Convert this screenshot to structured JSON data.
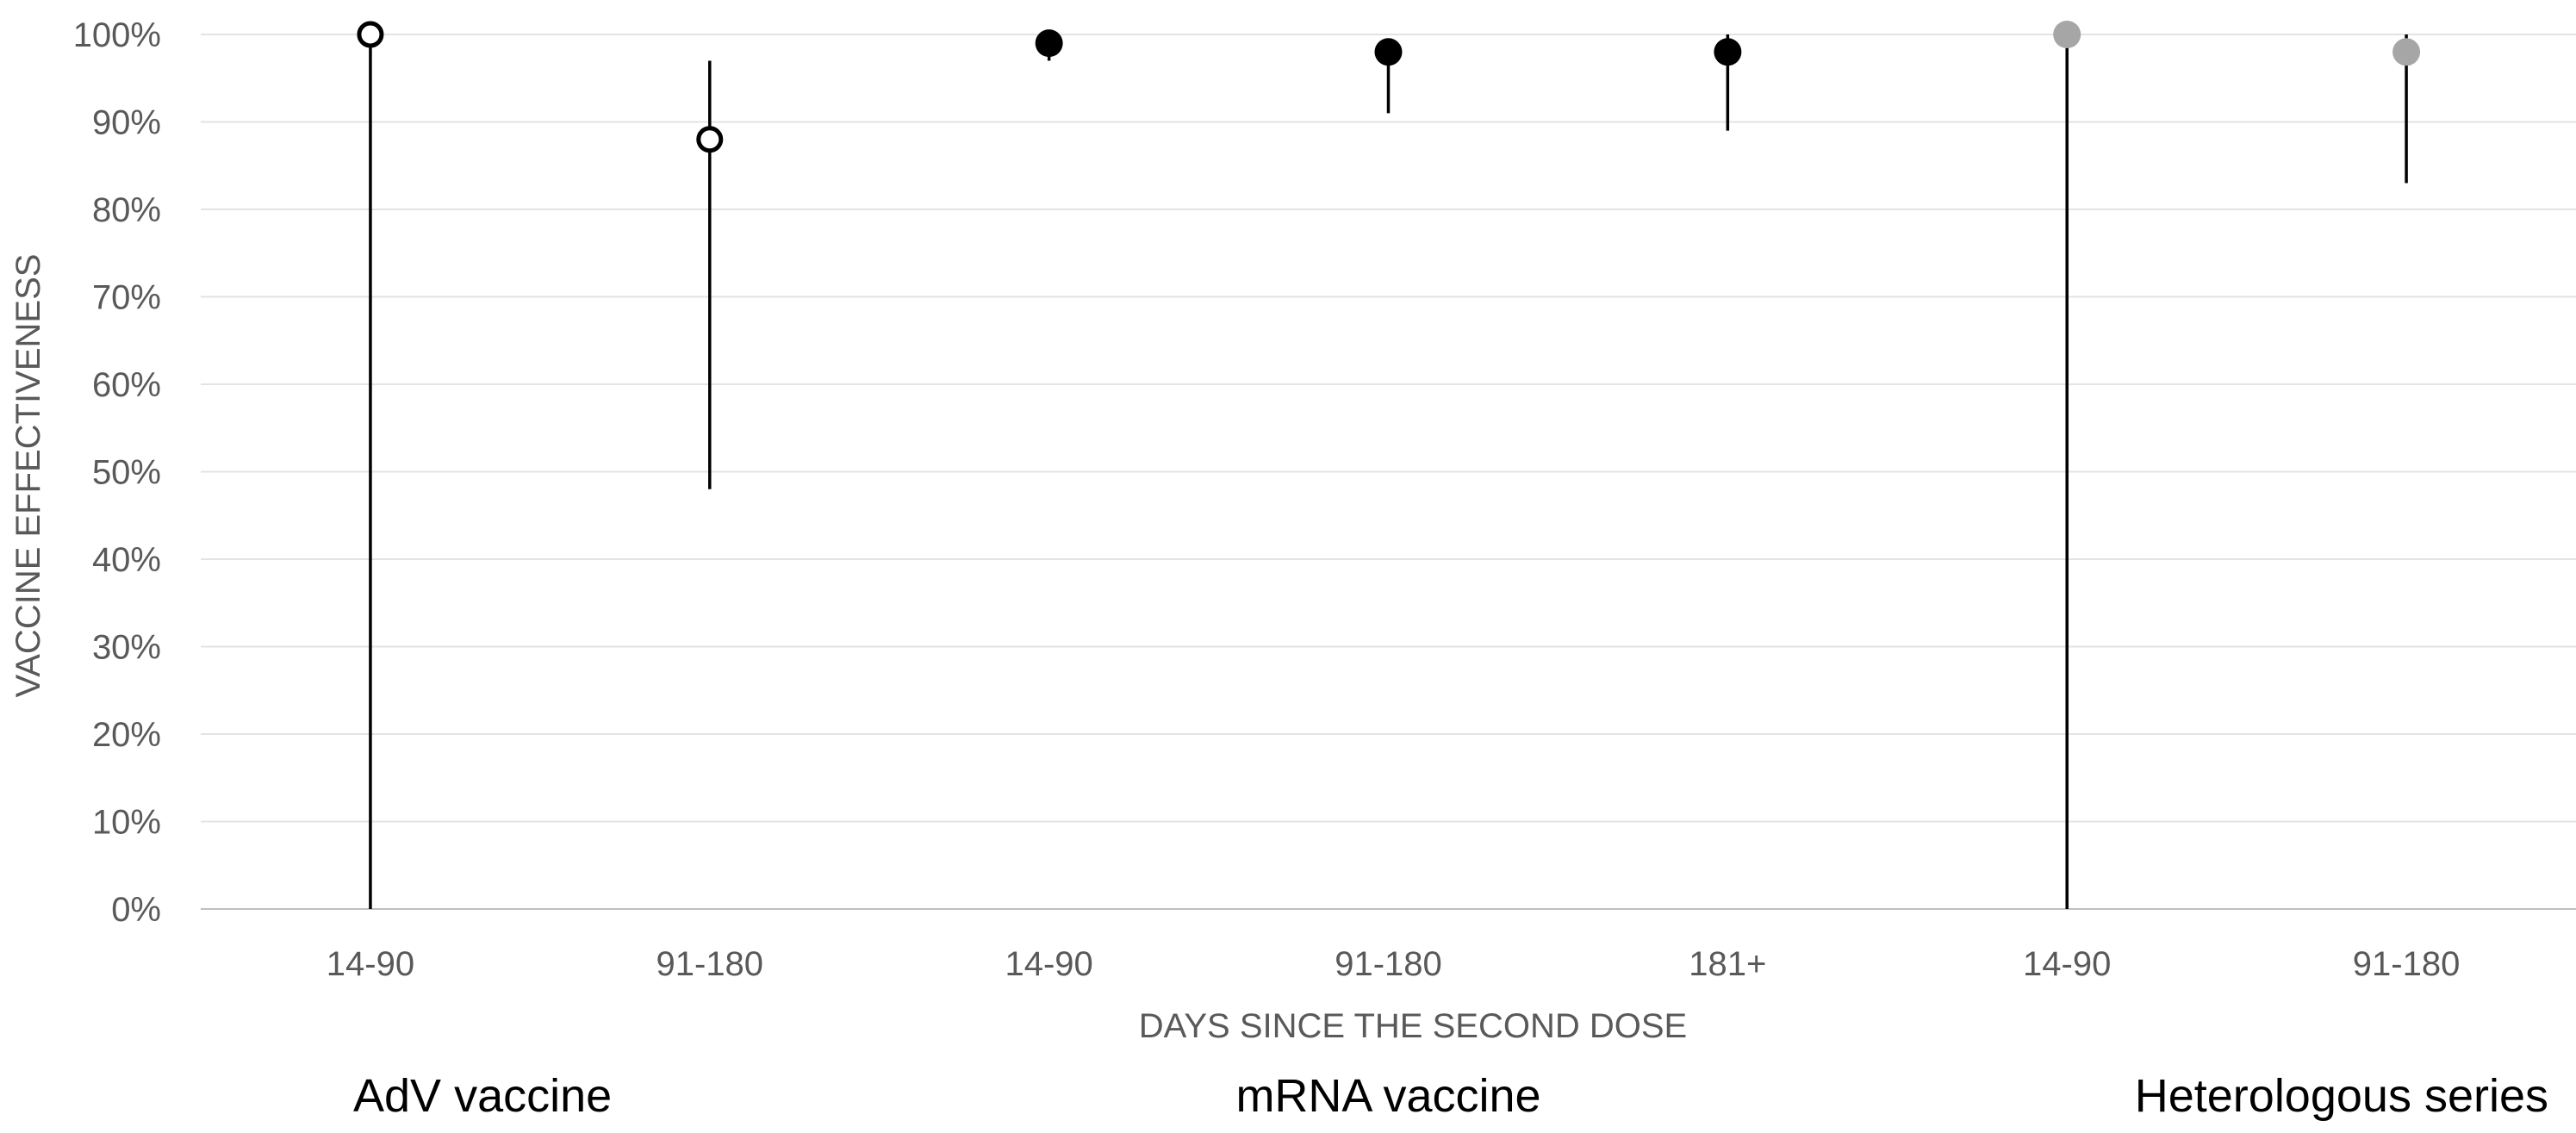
{
  "chart_data": {
    "type": "scatter",
    "title": "",
    "xlabel": "DAYS SINCE THE SECOND DOSE",
    "ylabel": "VACCINE EFFECTIVENESS",
    "ylim": [
      0,
      100
    ],
    "y_ticks": [
      "0%",
      "10%",
      "20%",
      "30%",
      "40%",
      "50%",
      "60%",
      "70%",
      "80%",
      "90%",
      "100%"
    ],
    "grid": "horizontal",
    "legend": "none",
    "categories": [
      "14-90",
      "91-180",
      "14-90",
      "91-180",
      "181+",
      "14-90",
      "91-180"
    ],
    "groups": [
      {
        "name": "AdV vaccine",
        "marker": "open-circle",
        "color": "#000000",
        "points": [
          {
            "category": "14-90",
            "value": 100,
            "ci_low": 0,
            "ci_high": 100
          },
          {
            "category": "91-180",
            "value": 88,
            "ci_low": 48,
            "ci_high": 97
          }
        ]
      },
      {
        "name": "mRNA vaccine",
        "marker": "filled-circle",
        "color": "#000000",
        "points": [
          {
            "category": "14-90",
            "value": 99,
            "ci_low": 97,
            "ci_high": 99
          },
          {
            "category": "91-180",
            "value": 98,
            "ci_low": 91,
            "ci_high": 98
          },
          {
            "category": "181+",
            "value": 98,
            "ci_low": 89,
            "ci_high": 100
          }
        ]
      },
      {
        "name": "Heterologous series",
        "marker": "filled-circle",
        "color": "#a6a6a6",
        "points": [
          {
            "category": "14-90",
            "value": 100,
            "ci_low": 0,
            "ci_high": 100
          },
          {
            "category": "91-180",
            "value": 98,
            "ci_low": 83,
            "ci_high": 100
          }
        ]
      }
    ]
  }
}
